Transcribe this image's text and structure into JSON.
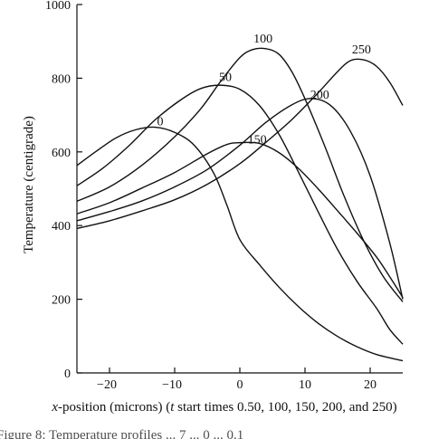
{
  "chart_data": {
    "type": "line",
    "title": "",
    "xlabel_parts": [
      "x",
      "-position (microns) (",
      "t",
      " start times 0.50, 100, 150, 200, and 250)"
    ],
    "ylabel": "Temperature (centigrade)",
    "xlim": [
      -25,
      25
    ],
    "ylim": [
      0,
      1000
    ],
    "xticks": [
      -20,
      -10,
      0,
      10,
      20
    ],
    "yticks": [
      0,
      200,
      400,
      600,
      800,
      1000
    ],
    "grid": false,
    "caption": "Figure 8: Temperature profiles ... 7 ... 0 ... 0.1",
    "series": [
      {
        "label": "0",
        "label_at": [
          -12.7,
          672
        ],
        "points": [
          [
            -25,
            563
          ],
          [
            -22,
            602
          ],
          [
            -19,
            638
          ],
          [
            -16,
            660
          ],
          [
            -13,
            667
          ],
          [
            -10,
            653
          ],
          [
            -7,
            618
          ],
          [
            -4,
            542
          ],
          [
            -2,
            456
          ],
          [
            0,
            362
          ],
          [
            3,
            294
          ],
          [
            6,
            233
          ],
          [
            9,
            180
          ],
          [
            12,
            135
          ],
          [
            15,
            99
          ],
          [
            18,
            71
          ],
          [
            21,
            50
          ],
          [
            25,
            33
          ]
        ]
      },
      {
        "label": "50",
        "label_at": [
          -3.2,
          792
        ],
        "points": [
          [
            -25,
            508
          ],
          [
            -21,
            556
          ],
          [
            -17,
            617
          ],
          [
            -13,
            687
          ],
          [
            -9,
            742
          ],
          [
            -6,
            772
          ],
          [
            -3,
            781
          ],
          [
            0,
            770
          ],
          [
            3,
            726
          ],
          [
            6,
            648
          ],
          [
            9,
            545
          ],
          [
            12,
            438
          ],
          [
            15,
            335
          ],
          [
            18,
            248
          ],
          [
            21,
            175
          ],
          [
            23,
            118
          ],
          [
            25,
            78
          ]
        ]
      },
      {
        "label": "100",
        "label_at": [
          2.1,
          897
        ],
        "points": [
          [
            -25,
            466
          ],
          [
            -20,
            505
          ],
          [
            -15,
            564
          ],
          [
            -10,
            641
          ],
          [
            -6,
            717
          ],
          [
            -3,
            790
          ],
          [
            0,
            856
          ],
          [
            2,
            878
          ],
          [
            4,
            880
          ],
          [
            6,
            865
          ],
          [
            8,
            817
          ],
          [
            10,
            744
          ],
          [
            13,
            617
          ],
          [
            16,
            480
          ],
          [
            19,
            359
          ],
          [
            22,
            262
          ],
          [
            25,
            193
          ]
        ]
      },
      {
        "label": "150",
        "label_at": [
          1.2,
          623
        ],
        "points": [
          [
            -25,
            432
          ],
          [
            -20,
            462
          ],
          [
            -15,
            502
          ],
          [
            -10,
            544
          ],
          [
            -5,
            595
          ],
          [
            -2,
            620
          ],
          [
            0,
            625
          ],
          [
            3,
            623
          ],
          [
            6,
            598
          ],
          [
            9,
            555
          ],
          [
            12,
            500
          ],
          [
            15,
            440
          ],
          [
            18,
            379
          ],
          [
            21,
            314
          ],
          [
            23,
            261
          ],
          [
            25,
            205
          ]
        ]
      },
      {
        "label": "200",
        "label_at": [
          10.8,
          745
        ],
        "points": [
          [
            -25,
            413
          ],
          [
            -20,
            438
          ],
          [
            -15,
            467
          ],
          [
            -10,
            505
          ],
          [
            -5,
            552
          ],
          [
            0,
            618
          ],
          [
            4,
            680
          ],
          [
            8,
            728
          ],
          [
            11,
            745
          ],
          [
            14,
            725
          ],
          [
            17,
            655
          ],
          [
            20,
            535
          ],
          [
            23,
            353
          ],
          [
            25,
            200
          ]
        ]
      },
      {
        "label": "250",
        "label_at": [
          17.2,
          867
        ],
        "points": [
          [
            -25,
            392
          ],
          [
            -20,
            413
          ],
          [
            -15,
            440
          ],
          [
            -10,
            470
          ],
          [
            -5,
            512
          ],
          [
            0,
            568
          ],
          [
            4,
            626
          ],
          [
            8,
            688
          ],
          [
            12,
            760
          ],
          [
            15,
            818
          ],
          [
            17,
            848
          ],
          [
            19,
            850
          ],
          [
            21,
            832
          ],
          [
            23,
            789
          ],
          [
            25,
            726
          ]
        ]
      }
    ]
  }
}
